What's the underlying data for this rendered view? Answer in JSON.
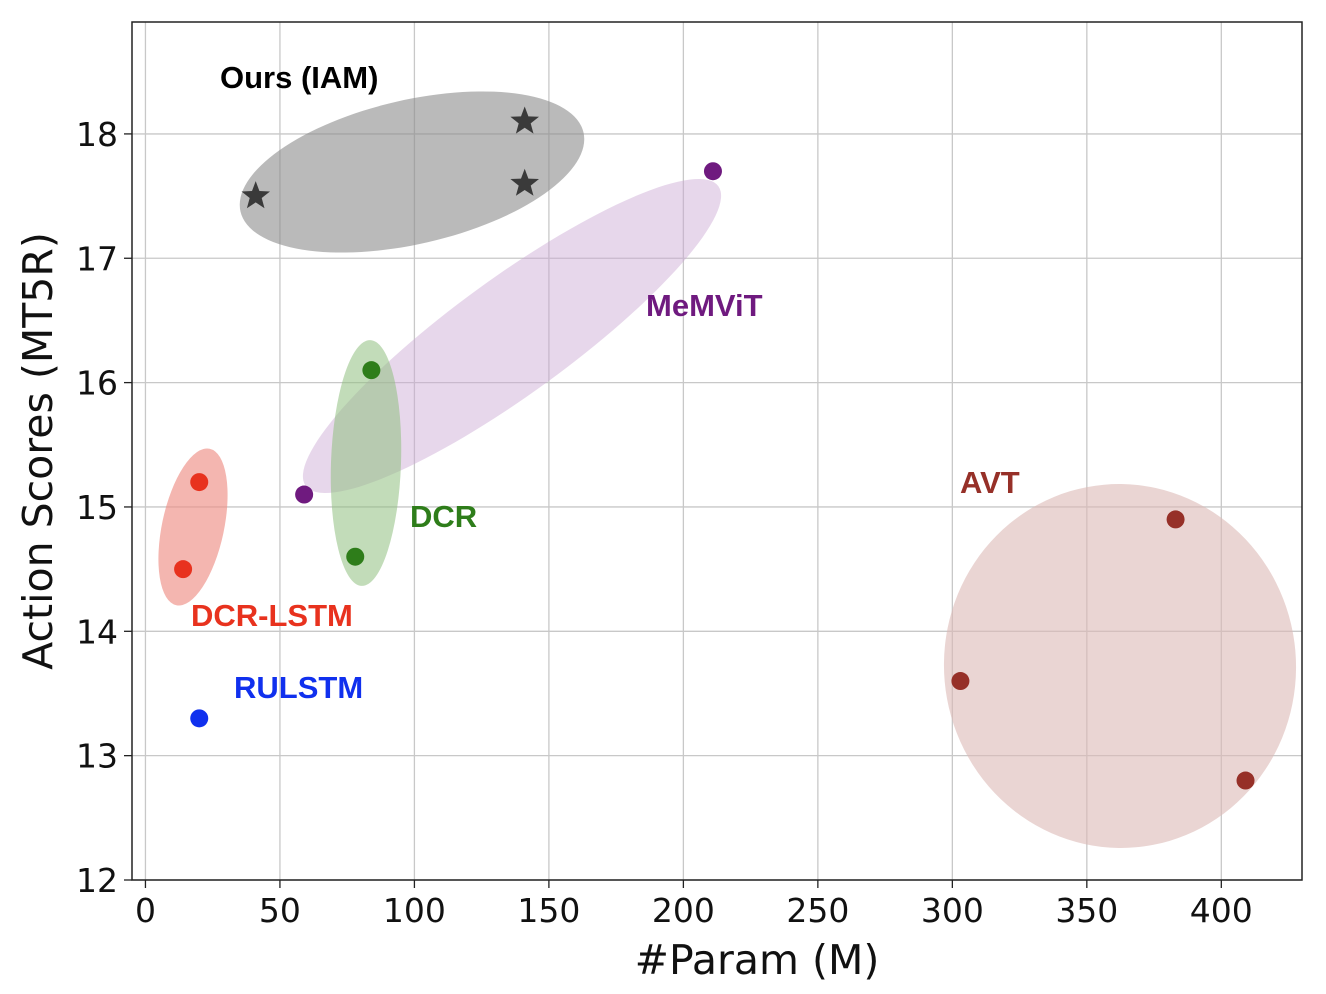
{
  "chart_data": {
    "type": "scatter",
    "title": "",
    "xlabel": "#Param (M)",
    "ylabel": "Action Scores (MT5R)",
    "xlim": [
      -5,
      430
    ],
    "ylim": [
      12,
      18.9
    ],
    "xticks": [
      0,
      50,
      100,
      150,
      200,
      250,
      300,
      350,
      400
    ],
    "yticks": [
      12,
      13,
      14,
      15,
      16,
      17,
      18
    ],
    "grid": true,
    "legend": "none",
    "series": [
      {
        "name": "Ours (IAM)",
        "marker": "star",
        "color": "#3a3a3a",
        "region_color": "#8c8c8c",
        "points": [
          [
            41,
            17.5
          ],
          [
            141,
            18.1
          ],
          [
            141,
            17.6
          ]
        ]
      },
      {
        "name": "MeMViT",
        "marker": "circle",
        "color": "#6f1a7f",
        "region_color": "#c9a6d3",
        "points": [
          [
            59,
            15.1
          ],
          [
            211,
            17.7
          ]
        ]
      },
      {
        "name": "DCR",
        "marker": "circle",
        "color": "#2e7d1a",
        "region_color": "#8fbf7f",
        "points": [
          [
            84,
            16.1
          ],
          [
            78,
            14.6
          ]
        ]
      },
      {
        "name": "DCR-LSTM",
        "marker": "circle",
        "color": "#e8321e",
        "region_color": "#ee8f85",
        "points": [
          [
            20,
            15.2
          ],
          [
            14,
            14.5
          ]
        ]
      },
      {
        "name": "RULSTM",
        "marker": "circle",
        "color": "#1030ee",
        "region_color": null,
        "points": [
          [
            20,
            13.3
          ]
        ]
      },
      {
        "name": "AVT",
        "marker": "circle",
        "color": "#963028",
        "region_color": "#dcb9b6",
        "points": [
          [
            303,
            13.6
          ],
          [
            383,
            14.9
          ],
          [
            409,
            12.8
          ]
        ]
      }
    ]
  }
}
